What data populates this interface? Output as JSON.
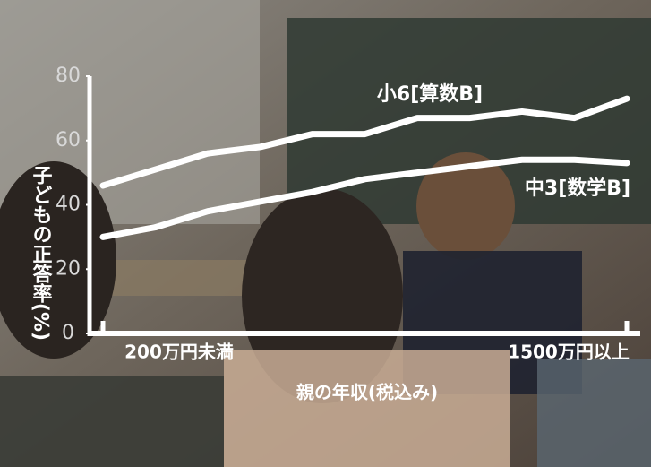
{
  "chart_data": {
    "type": "line",
    "ylabel": "子どもの正答率(%)",
    "xlabel": "親の年収(税込み)",
    "categories": [
      "200万円未満",
      null,
      null,
      null,
      null,
      null,
      null,
      null,
      null,
      null,
      "1500万円以上"
    ],
    "series": [
      {
        "name": "小6[算数B]",
        "color": "#ffffff",
        "values": [
          46,
          51,
          56,
          58,
          62,
          62,
          67,
          67,
          69,
          67,
          73
        ]
      },
      {
        "name": "中3[数学B]",
        "color": "#ffffff",
        "values": [
          30,
          33,
          38,
          41,
          44,
          48,
          50,
          52,
          54,
          54,
          53
        ]
      }
    ],
    "ylim": [
      0,
      80
    ],
    "yticks": [
      0,
      20,
      40,
      60,
      80
    ]
  }
}
